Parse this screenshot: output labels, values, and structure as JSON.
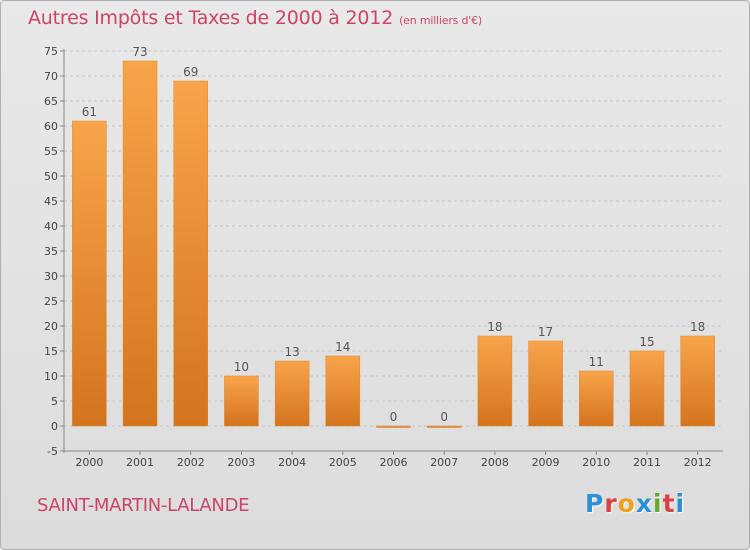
{
  "title": "Autres Impôts et Taxes de 2000 à 2012",
  "unit_note": "(en milliers d'€)",
  "town": "SAINT-MARTIN-LALANDE",
  "logo": {
    "letters": [
      "P",
      "r",
      "o",
      "x",
      "i",
      "t",
      "i"
    ],
    "colors": [
      "#2d8fd5",
      "#d94141",
      "#f0a020",
      "#2d8fd5",
      "#66aa33",
      "#d94141",
      "#2d8fd5"
    ]
  },
  "colors": {
    "bar": "#f59a3c",
    "bar_dark": "#d07020",
    "text": "#cc4466"
  },
  "chart_data": {
    "type": "bar",
    "categories": [
      "2000",
      "2001",
      "2002",
      "2003",
      "2004",
      "2005",
      "2006",
      "2007",
      "2008",
      "2009",
      "2010",
      "2011",
      "2012"
    ],
    "values": [
      61,
      73,
      69,
      10,
      13,
      14,
      0,
      0,
      18,
      17,
      11,
      15,
      18
    ],
    "data_labels": [
      "61",
      "73",
      "69",
      "10",
      "13",
      "14",
      "0",
      "0",
      "18",
      "17",
      "11",
      "15",
      "18"
    ],
    "ylim": [
      -5,
      75
    ],
    "yticks": [
      -5,
      0,
      5,
      10,
      15,
      20,
      25,
      30,
      35,
      40,
      45,
      50,
      55,
      60,
      65,
      70,
      75
    ],
    "grid": "horizontal dashed",
    "xlabel": "",
    "ylabel": ""
  }
}
